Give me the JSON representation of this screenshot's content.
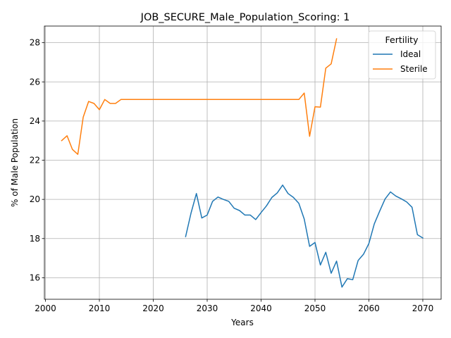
{
  "chart_data": {
    "type": "line",
    "title": "JOB_SECURE_Male_Population_Scoring: 1",
    "xlabel": "Years",
    "ylabel": "% of Male Population",
    "xlim": [
      1999.8,
      2073.4
    ],
    "ylim": [
      14.9,
      28.85
    ],
    "xticks": [
      2000,
      2010,
      2020,
      2030,
      2040,
      2050,
      2060,
      2070
    ],
    "yticks": [
      16,
      18,
      20,
      22,
      24,
      26,
      28
    ],
    "grid": true,
    "legend": {
      "title": "Fertility",
      "placement": "top-right"
    },
    "series": [
      {
        "name": "Ideal",
        "color": "#1f77b4",
        "x": [
          2026,
          2027,
          2028,
          2029,
          2030,
          2031,
          2032,
          2033,
          2034,
          2035,
          2036,
          2037,
          2038,
          2039,
          2040,
          2041,
          2042,
          2043,
          2044,
          2045,
          2046,
          2047,
          2048,
          2049,
          2050,
          2051,
          2052,
          2053,
          2054,
          2055,
          2056,
          2057,
          2058,
          2059,
          2060,
          2061,
          2062,
          2063,
          2064,
          2065,
          2066,
          2067,
          2068,
          2069,
          2070
        ],
        "y": [
          18.1,
          19.3,
          20.3,
          19.05,
          19.2,
          19.9,
          20.12,
          20.0,
          19.9,
          19.55,
          19.43,
          19.2,
          19.2,
          18.97,
          19.33,
          19.67,
          20.1,
          20.33,
          20.73,
          20.3,
          20.1,
          19.8,
          19.0,
          17.6,
          17.8,
          16.65,
          17.3,
          16.23,
          16.85,
          15.52,
          15.95,
          15.9,
          16.88,
          17.2,
          17.75,
          18.75,
          19.4,
          20.02,
          20.38,
          20.17,
          20.03,
          19.87,
          19.6,
          18.2,
          18.03
        ]
      },
      {
        "name": "Sterile",
        "color": "#ff7f0e",
        "x": [
          2003,
          2004,
          2005,
          2006,
          2007,
          2008,
          2009,
          2010,
          2011,
          2012,
          2013,
          2014,
          2015,
          2016,
          2017,
          2018,
          2019,
          2020,
          2021,
          2022,
          2023,
          2024,
          2025,
          2026,
          2027,
          2028,
          2029,
          2030,
          2031,
          2032,
          2033,
          2034,
          2035,
          2036,
          2037,
          2038,
          2039,
          2040,
          2041,
          2042,
          2043,
          2044,
          2045,
          2046,
          2047,
          2048,
          2049,
          2050,
          2051,
          2052,
          2053,
          2054
        ],
        "y": [
          23.0,
          23.25,
          22.55,
          22.3,
          24.2,
          25.0,
          24.9,
          24.58,
          25.1,
          24.9,
          24.9,
          25.1,
          25.1,
          25.1,
          25.1,
          25.1,
          25.1,
          25.1,
          25.1,
          25.1,
          25.1,
          25.1,
          25.1,
          25.1,
          25.1,
          25.1,
          25.1,
          25.1,
          25.1,
          25.1,
          25.1,
          25.1,
          25.1,
          25.1,
          25.1,
          25.1,
          25.1,
          25.1,
          25.1,
          25.1,
          25.1,
          25.1,
          25.1,
          25.1,
          25.1,
          25.43,
          23.22,
          24.73,
          24.71,
          26.7,
          26.92,
          28.2
        ]
      }
    ]
  }
}
